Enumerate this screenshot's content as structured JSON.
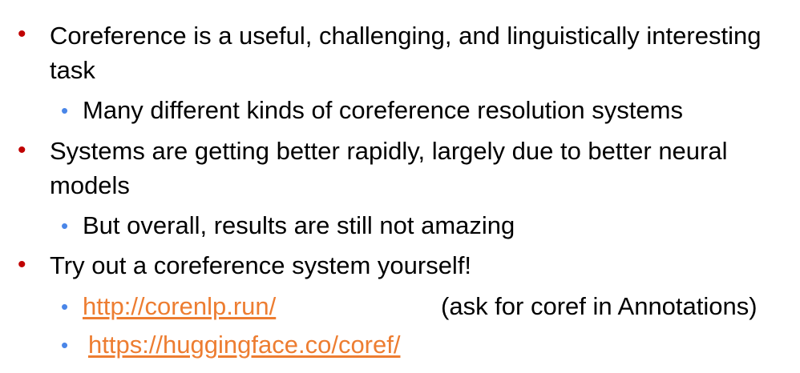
{
  "bullets": [
    {
      "line1": "Coreference is a useful, challenging, and linguistically interesting",
      "line2": "task",
      "sub": [
        {
          "text": "Many different kinds of coreference resolution systems"
        }
      ]
    },
    {
      "line1": "Systems are getting better rapidly, largely due to better neural",
      "line2": "models",
      "sub": [
        {
          "text": "But overall, results are still not amazing"
        }
      ]
    },
    {
      "line1": "Try out a coreference system yourself!",
      "sub": [
        {
          "link": "http://corenlp.run/",
          "note": "(ask for coref in Annotations)"
        },
        {
          "link": "https://huggingface.co/coref/"
        }
      ]
    }
  ],
  "colors": {
    "level1_bullet": "#c00000",
    "level2_bullet": "#4a86e8",
    "link": "#ed7d31"
  },
  "icons": {
    "level1": "bullet-dot",
    "level2": "bullet-dot"
  }
}
